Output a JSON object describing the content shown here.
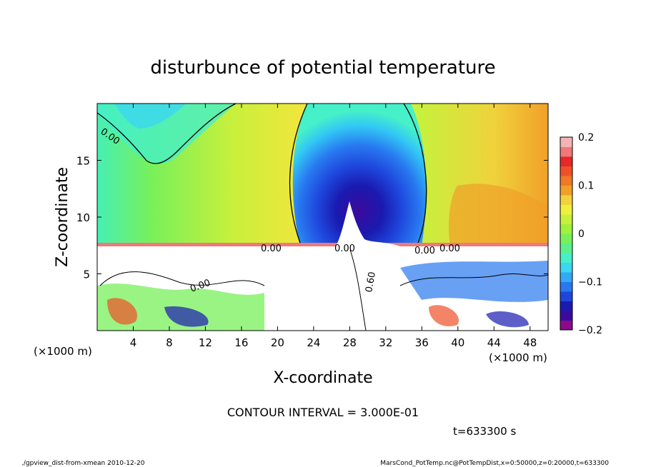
{
  "chart_data": {
    "type": "heatmap",
    "title": "disturbunce of potential temperature",
    "xlabel": "X-coordinate",
    "ylabel": "Z-coordinate",
    "x_units_left": "(×1000 m)",
    "x_units_right": "(×1000 m)",
    "xlim": [
      0,
      50
    ],
    "ylim": [
      0,
      20
    ],
    "xticks": [
      "4",
      "8",
      "12",
      "16",
      "20",
      "24",
      "28",
      "32",
      "36",
      "40",
      "44",
      "48"
    ],
    "xtick_values": [
      4,
      8,
      12,
      16,
      20,
      24,
      28,
      32,
      36,
      40,
      44,
      48
    ],
    "yticks": [
      "5",
      "10",
      "15"
    ],
    "ytick_values": [
      5,
      10,
      15
    ],
    "colorbar": {
      "range": [
        -0.2,
        0.2
      ],
      "tick_labels": [
        "0.2",
        "0.1",
        "0",
        "−0.1",
        "−0.2"
      ],
      "tick_values": [
        0.2,
        0.1,
        0,
        -0.1,
        -0.2
      ],
      "colors": [
        "#8b0a8b",
        "#3c0a9c",
        "#1a1ab0",
        "#1e46dc",
        "#2878f0",
        "#32aaf5",
        "#3cd7f0",
        "#46f0c8",
        "#5af08c",
        "#78f05a",
        "#a0f03c",
        "#c8f03c",
        "#f0f03c",
        "#f0d23c",
        "#f0a028",
        "#f07828",
        "#f05028",
        "#e62828",
        "#f07878",
        "#f5b4b4"
      ]
    },
    "contour_labels": [
      "0.00",
      "0.00",
      "0.00",
      "0.00",
      "0.00",
      "0.00",
      "0.60"
    ],
    "contour_interval_text": "CONTOUR INTERVAL = 3.000E-01",
    "time_text": "t=633300 s",
    "grid": false,
    "legend": "colorbar-right"
  },
  "footer": {
    "left": "./gpview_dist-from-xmean  2010-12-20",
    "right": "MarsCond_PotTemp.nc@PotTempDist,x=0:50000,z=0:20000,t=633300"
  }
}
